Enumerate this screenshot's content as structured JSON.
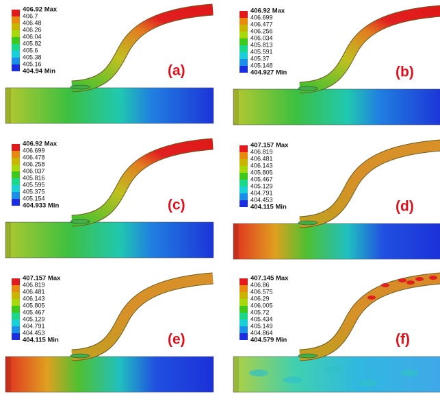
{
  "panels": [
    {
      "label": "(a)",
      "legend": [
        "406.92 Max",
        "406.7",
        "406.48",
        "406.26",
        "406.04",
        "405.82",
        "405.6",
        "405.38",
        "405.16",
        "404.94 Min"
      ]
    },
    {
      "label": "(b)",
      "legend": [
        "406.92 Max",
        "406.699",
        "406.477",
        "406.256",
        "406.034",
        "405.813",
        "405.591",
        "405.37",
        "405.148",
        "404.927 Min"
      ]
    },
    {
      "label": "(c)",
      "legend": [
        "406.92 Max",
        "406.699",
        "406.478",
        "406.258",
        "406.037",
        "405.816",
        "405.595",
        "405.375",
        "405.154",
        "404.933 Min"
      ]
    },
    {
      "label": "(d)",
      "legend": [
        "407.157 Max",
        "406.819",
        "406.481",
        "406.143",
        "405.805",
        "405.467",
        "405.129",
        "404.791",
        "404.453",
        "404.115 Min"
      ]
    },
    {
      "label": "(e)",
      "legend": [
        "407.157 Max",
        "406.819",
        "406.481",
        "406.143",
        "405.805",
        "405.467",
        "405.129",
        "404.791",
        "404.453",
        "404.115 Min"
      ]
    },
    {
      "label": "(f)",
      "legend": [
        "407.145 Max",
        "406.86",
        "406.575",
        "406.29",
        "406.005",
        "405.72",
        "405.434",
        "405.149",
        "404.864",
        "404.579 Min"
      ]
    }
  ]
}
